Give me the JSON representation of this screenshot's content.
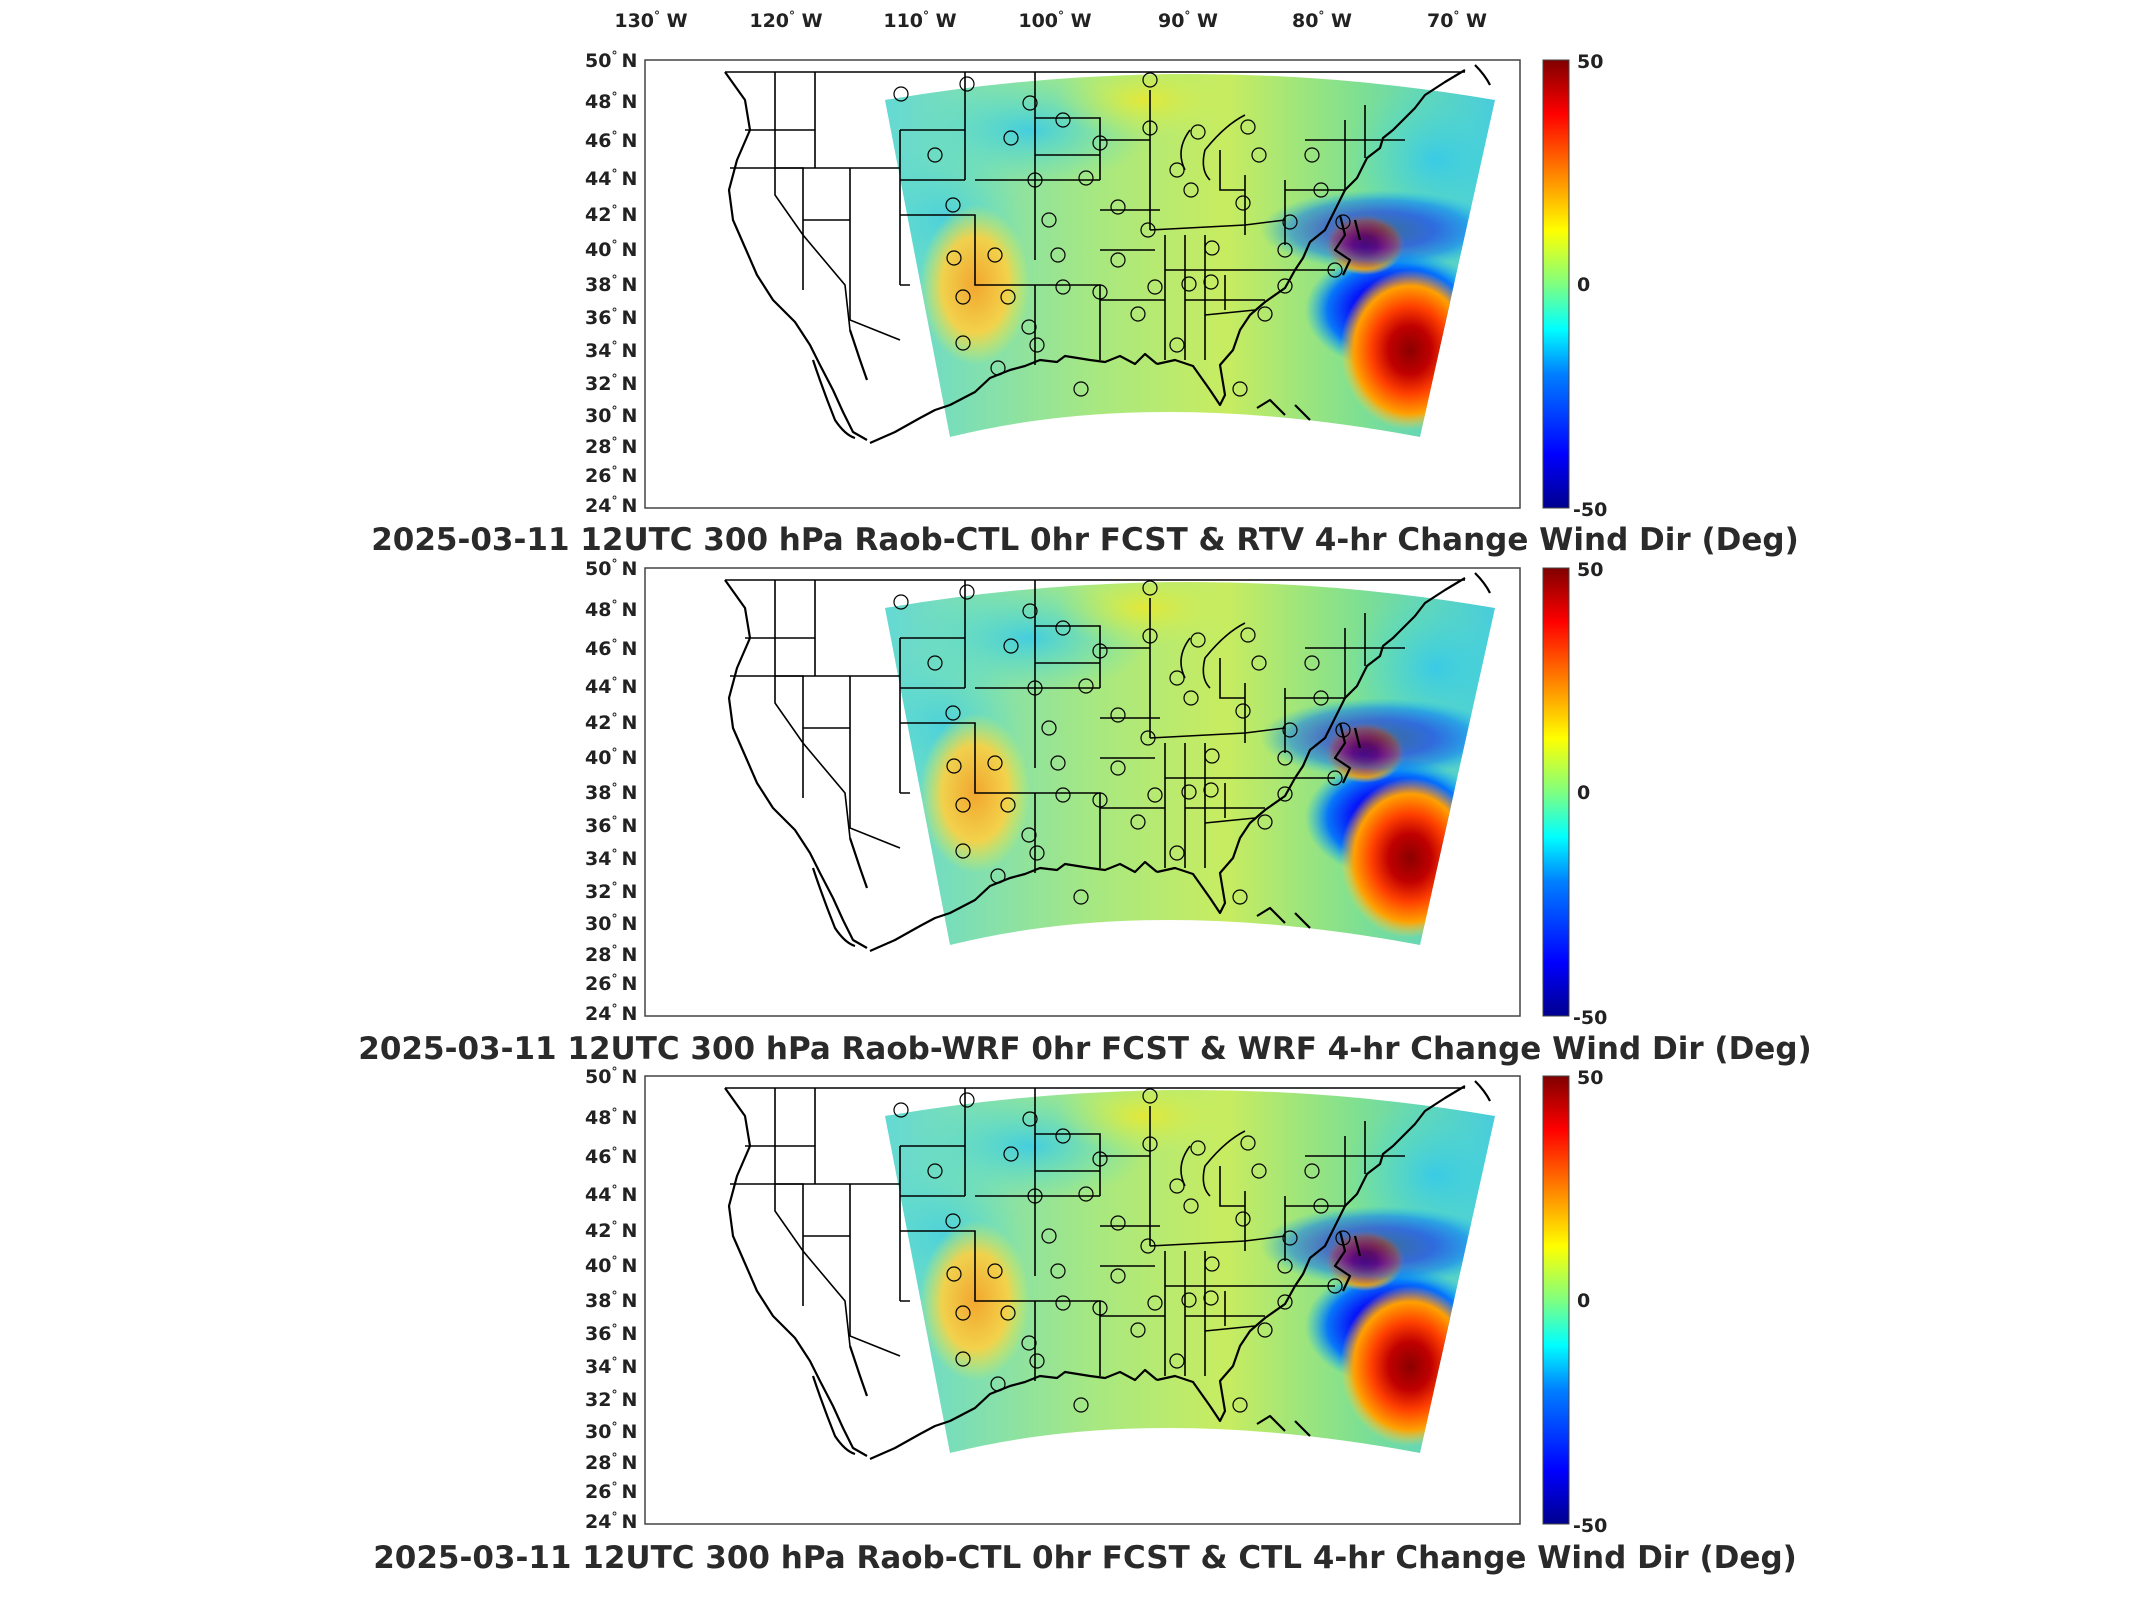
{
  "lon_labels": [
    "130",
    "120",
    "110",
    "100",
    "90",
    "80",
    "70"
  ],
  "lon_suffix": "W",
  "lat_labels": [
    "50",
    "48",
    "46",
    "44",
    "42",
    "40",
    "38",
    "36",
    "34",
    "32",
    "30",
    "28",
    "26",
    "24"
  ],
  "lat_suffix": "N",
  "degree_symbol": "°",
  "colorbar": {
    "max_label": "50",
    "mid_label": "0",
    "min_label": "-50",
    "range": [
      -50,
      50
    ],
    "colormap": "jet",
    "colors": [
      "#00008f",
      "#0000ff",
      "#0080ff",
      "#00ffff",
      "#80ff80",
      "#ffff00",
      "#ff8000",
      "#ff0000",
      "#800000"
    ]
  },
  "panels": [
    {
      "title": "2025-03-11 12UTC 300 hPa Raob-CTL 0hr FCST & RTV 4-hr Change Wind Dir (Deg)"
    },
    {
      "title": "2025-03-11 12UTC 300 hPa Raob-WRF 0hr FCST & WRF 4-hr Change Wind Dir (Deg)"
    },
    {
      "title": "2025-03-11 12UTC 300 hPa Raob-CTL 0hr FCST & CTL 4-hr Change Wind Dir (Deg)"
    }
  ]
}
